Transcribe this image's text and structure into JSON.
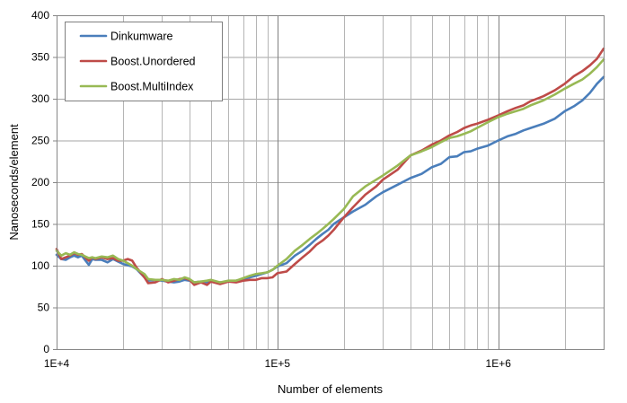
{
  "chart_data": {
    "type": "line",
    "xlabel": "Number of elements",
    "ylabel": "Nanoseconds/element",
    "xscale": "log",
    "xlim": [
      10000,
      3000000
    ],
    "ylim": [
      0,
      400
    ],
    "yticks": [
      0,
      50,
      100,
      150,
      200,
      250,
      300,
      350,
      400
    ],
    "xtick_labels": [
      {
        "value": 10000,
        "label": "1E+4"
      },
      {
        "value": 100000,
        "label": "1E+5"
      },
      {
        "value": 1000000,
        "label": "1E+6"
      }
    ],
    "grid": true,
    "legend_position": "top-left",
    "series": [
      {
        "name": "Dinkumware",
        "color": "#4a7ebb",
        "points": [
          [
            10000,
            113
          ],
          [
            10500,
            108
          ],
          [
            11000,
            107
          ],
          [
            11500,
            110
          ],
          [
            12000,
            112
          ],
          [
            12500,
            110
          ],
          [
            13000,
            112
          ],
          [
            14000,
            101
          ],
          [
            14500,
            108
          ],
          [
            15000,
            107
          ],
          [
            16000,
            107
          ],
          [
            17000,
            104
          ],
          [
            18000,
            108
          ],
          [
            19000,
            105
          ],
          [
            20000,
            102
          ],
          [
            22000,
            99
          ],
          [
            23000,
            96
          ],
          [
            25000,
            86
          ],
          [
            26000,
            82
          ],
          [
            28000,
            83
          ],
          [
            30000,
            82
          ],
          [
            32000,
            81
          ],
          [
            34000,
            80
          ],
          [
            36000,
            81
          ],
          [
            38000,
            83
          ],
          [
            40000,
            82
          ],
          [
            42000,
            80
          ],
          [
            45000,
            81
          ],
          [
            48000,
            80
          ],
          [
            50000,
            81
          ],
          [
            55000,
            80
          ],
          [
            60000,
            81
          ],
          [
            65000,
            82
          ],
          [
            70000,
            84
          ],
          [
            75000,
            86
          ],
          [
            80000,
            88
          ],
          [
            85000,
            90
          ],
          [
            90000,
            92
          ],
          [
            95000,
            95
          ],
          [
            100000,
            99
          ],
          [
            110000,
            103
          ],
          [
            120000,
            112
          ],
          [
            130000,
            118
          ],
          [
            140000,
            125
          ],
          [
            150000,
            132
          ],
          [
            160000,
            138
          ],
          [
            170000,
            143
          ],
          [
            180000,
            150
          ],
          [
            200000,
            158
          ],
          [
            220000,
            165
          ],
          [
            250000,
            173
          ],
          [
            280000,
            183
          ],
          [
            300000,
            188
          ],
          [
            350000,
            197
          ],
          [
            400000,
            205
          ],
          [
            450000,
            210
          ],
          [
            500000,
            218
          ],
          [
            550000,
            222
          ],
          [
            600000,
            230
          ],
          [
            650000,
            231
          ],
          [
            700000,
            236
          ],
          [
            750000,
            237
          ],
          [
            800000,
            240
          ],
          [
            900000,
            244
          ],
          [
            1000000,
            250
          ],
          [
            1100000,
            255
          ],
          [
            1200000,
            258
          ],
          [
            1300000,
            262
          ],
          [
            1400000,
            265
          ],
          [
            1600000,
            270
          ],
          [
            1800000,
            276
          ],
          [
            2000000,
            285
          ],
          [
            2200000,
            291
          ],
          [
            2400000,
            298
          ],
          [
            2600000,
            307
          ],
          [
            2800000,
            318
          ],
          [
            3000000,
            326
          ]
        ]
      },
      {
        "name": "Boost.Unordered",
        "color": "#be4b48",
        "points": [
          [
            10000,
            120
          ],
          [
            10500,
            108
          ],
          [
            11000,
            110
          ],
          [
            11500,
            112
          ],
          [
            12000,
            115
          ],
          [
            12500,
            113
          ],
          [
            13000,
            114
          ],
          [
            14000,
            106
          ],
          [
            14500,
            110
          ],
          [
            15000,
            108
          ],
          [
            16000,
            110
          ],
          [
            17000,
            108
          ],
          [
            18000,
            109
          ],
          [
            19000,
            106
          ],
          [
            20000,
            106
          ],
          [
            21000,
            108
          ],
          [
            22000,
            106
          ],
          [
            23000,
            98
          ],
          [
            25000,
            86
          ],
          [
            26000,
            79
          ],
          [
            28000,
            80
          ],
          [
            30000,
            84
          ],
          [
            32000,
            80
          ],
          [
            34000,
            82
          ],
          [
            36000,
            84
          ],
          [
            38000,
            85
          ],
          [
            40000,
            83
          ],
          [
            42000,
            77
          ],
          [
            45000,
            80
          ],
          [
            48000,
            77
          ],
          [
            50000,
            81
          ],
          [
            55000,
            78
          ],
          [
            60000,
            81
          ],
          [
            65000,
            80
          ],
          [
            70000,
            82
          ],
          [
            75000,
            83
          ],
          [
            80000,
            83
          ],
          [
            85000,
            85
          ],
          [
            90000,
            85
          ],
          [
            95000,
            86
          ],
          [
            100000,
            91
          ],
          [
            110000,
            93
          ],
          [
            120000,
            102
          ],
          [
            130000,
            110
          ],
          [
            140000,
            117
          ],
          [
            150000,
            125
          ],
          [
            160000,
            130
          ],
          [
            170000,
            136
          ],
          [
            180000,
            143
          ],
          [
            200000,
            158
          ],
          [
            220000,
            170
          ],
          [
            250000,
            185
          ],
          [
            280000,
            195
          ],
          [
            300000,
            203
          ],
          [
            350000,
            215
          ],
          [
            400000,
            232
          ],
          [
            450000,
            238
          ],
          [
            500000,
            245
          ],
          [
            550000,
            250
          ],
          [
            600000,
            256
          ],
          [
            650000,
            260
          ],
          [
            700000,
            265
          ],
          [
            750000,
            268
          ],
          [
            800000,
            270
          ],
          [
            900000,
            275
          ],
          [
            1000000,
            280
          ],
          [
            1100000,
            285
          ],
          [
            1200000,
            289
          ],
          [
            1300000,
            292
          ],
          [
            1400000,
            297
          ],
          [
            1600000,
            303
          ],
          [
            1800000,
            310
          ],
          [
            2000000,
            318
          ],
          [
            2200000,
            327
          ],
          [
            2400000,
            333
          ],
          [
            2600000,
            340
          ],
          [
            2800000,
            348
          ],
          [
            3000000,
            360
          ]
        ]
      },
      {
        "name": "Boost.MultiIndex",
        "color": "#98b954",
        "points": [
          [
            10000,
            118
          ],
          [
            10500,
            112
          ],
          [
            11000,
            115
          ],
          [
            11500,
            113
          ],
          [
            12000,
            116
          ],
          [
            12500,
            114
          ],
          [
            13000,
            113
          ],
          [
            14000,
            109
          ],
          [
            14500,
            110
          ],
          [
            15000,
            109
          ],
          [
            16000,
            111
          ],
          [
            17000,
            110
          ],
          [
            18000,
            112
          ],
          [
            19000,
            108
          ],
          [
            20000,
            106
          ],
          [
            22000,
            100
          ],
          [
            23000,
            96
          ],
          [
            25000,
            90
          ],
          [
            26000,
            84
          ],
          [
            28000,
            83
          ],
          [
            30000,
            83
          ],
          [
            32000,
            82
          ],
          [
            34000,
            84
          ],
          [
            36000,
            83
          ],
          [
            38000,
            86
          ],
          [
            40000,
            84
          ],
          [
            42000,
            80
          ],
          [
            45000,
            81
          ],
          [
            48000,
            82
          ],
          [
            50000,
            83
          ],
          [
            55000,
            80
          ],
          [
            60000,
            82
          ],
          [
            65000,
            82
          ],
          [
            70000,
            85
          ],
          [
            75000,
            88
          ],
          [
            80000,
            90
          ],
          [
            85000,
            91
          ],
          [
            90000,
            92
          ],
          [
            95000,
            95
          ],
          [
            100000,
            100
          ],
          [
            110000,
            108
          ],
          [
            120000,
            118
          ],
          [
            130000,
            125
          ],
          [
            140000,
            132
          ],
          [
            150000,
            138
          ],
          [
            160000,
            144
          ],
          [
            170000,
            150
          ],
          [
            180000,
            156
          ],
          [
            200000,
            168
          ],
          [
            220000,
            183
          ],
          [
            250000,
            195
          ],
          [
            280000,
            203
          ],
          [
            300000,
            208
          ],
          [
            350000,
            220
          ],
          [
            400000,
            232
          ],
          [
            450000,
            237
          ],
          [
            500000,
            242
          ],
          [
            550000,
            248
          ],
          [
            600000,
            253
          ],
          [
            650000,
            255
          ],
          [
            700000,
            258
          ],
          [
            750000,
            261
          ],
          [
            800000,
            265
          ],
          [
            900000,
            272
          ],
          [
            1000000,
            278
          ],
          [
            1100000,
            282
          ],
          [
            1200000,
            285
          ],
          [
            1300000,
            288
          ],
          [
            1400000,
            292
          ],
          [
            1600000,
            298
          ],
          [
            1800000,
            305
          ],
          [
            2000000,
            312
          ],
          [
            2200000,
            318
          ],
          [
            2400000,
            323
          ],
          [
            2600000,
            330
          ],
          [
            2800000,
            338
          ],
          [
            3000000,
            347
          ]
        ]
      }
    ]
  }
}
